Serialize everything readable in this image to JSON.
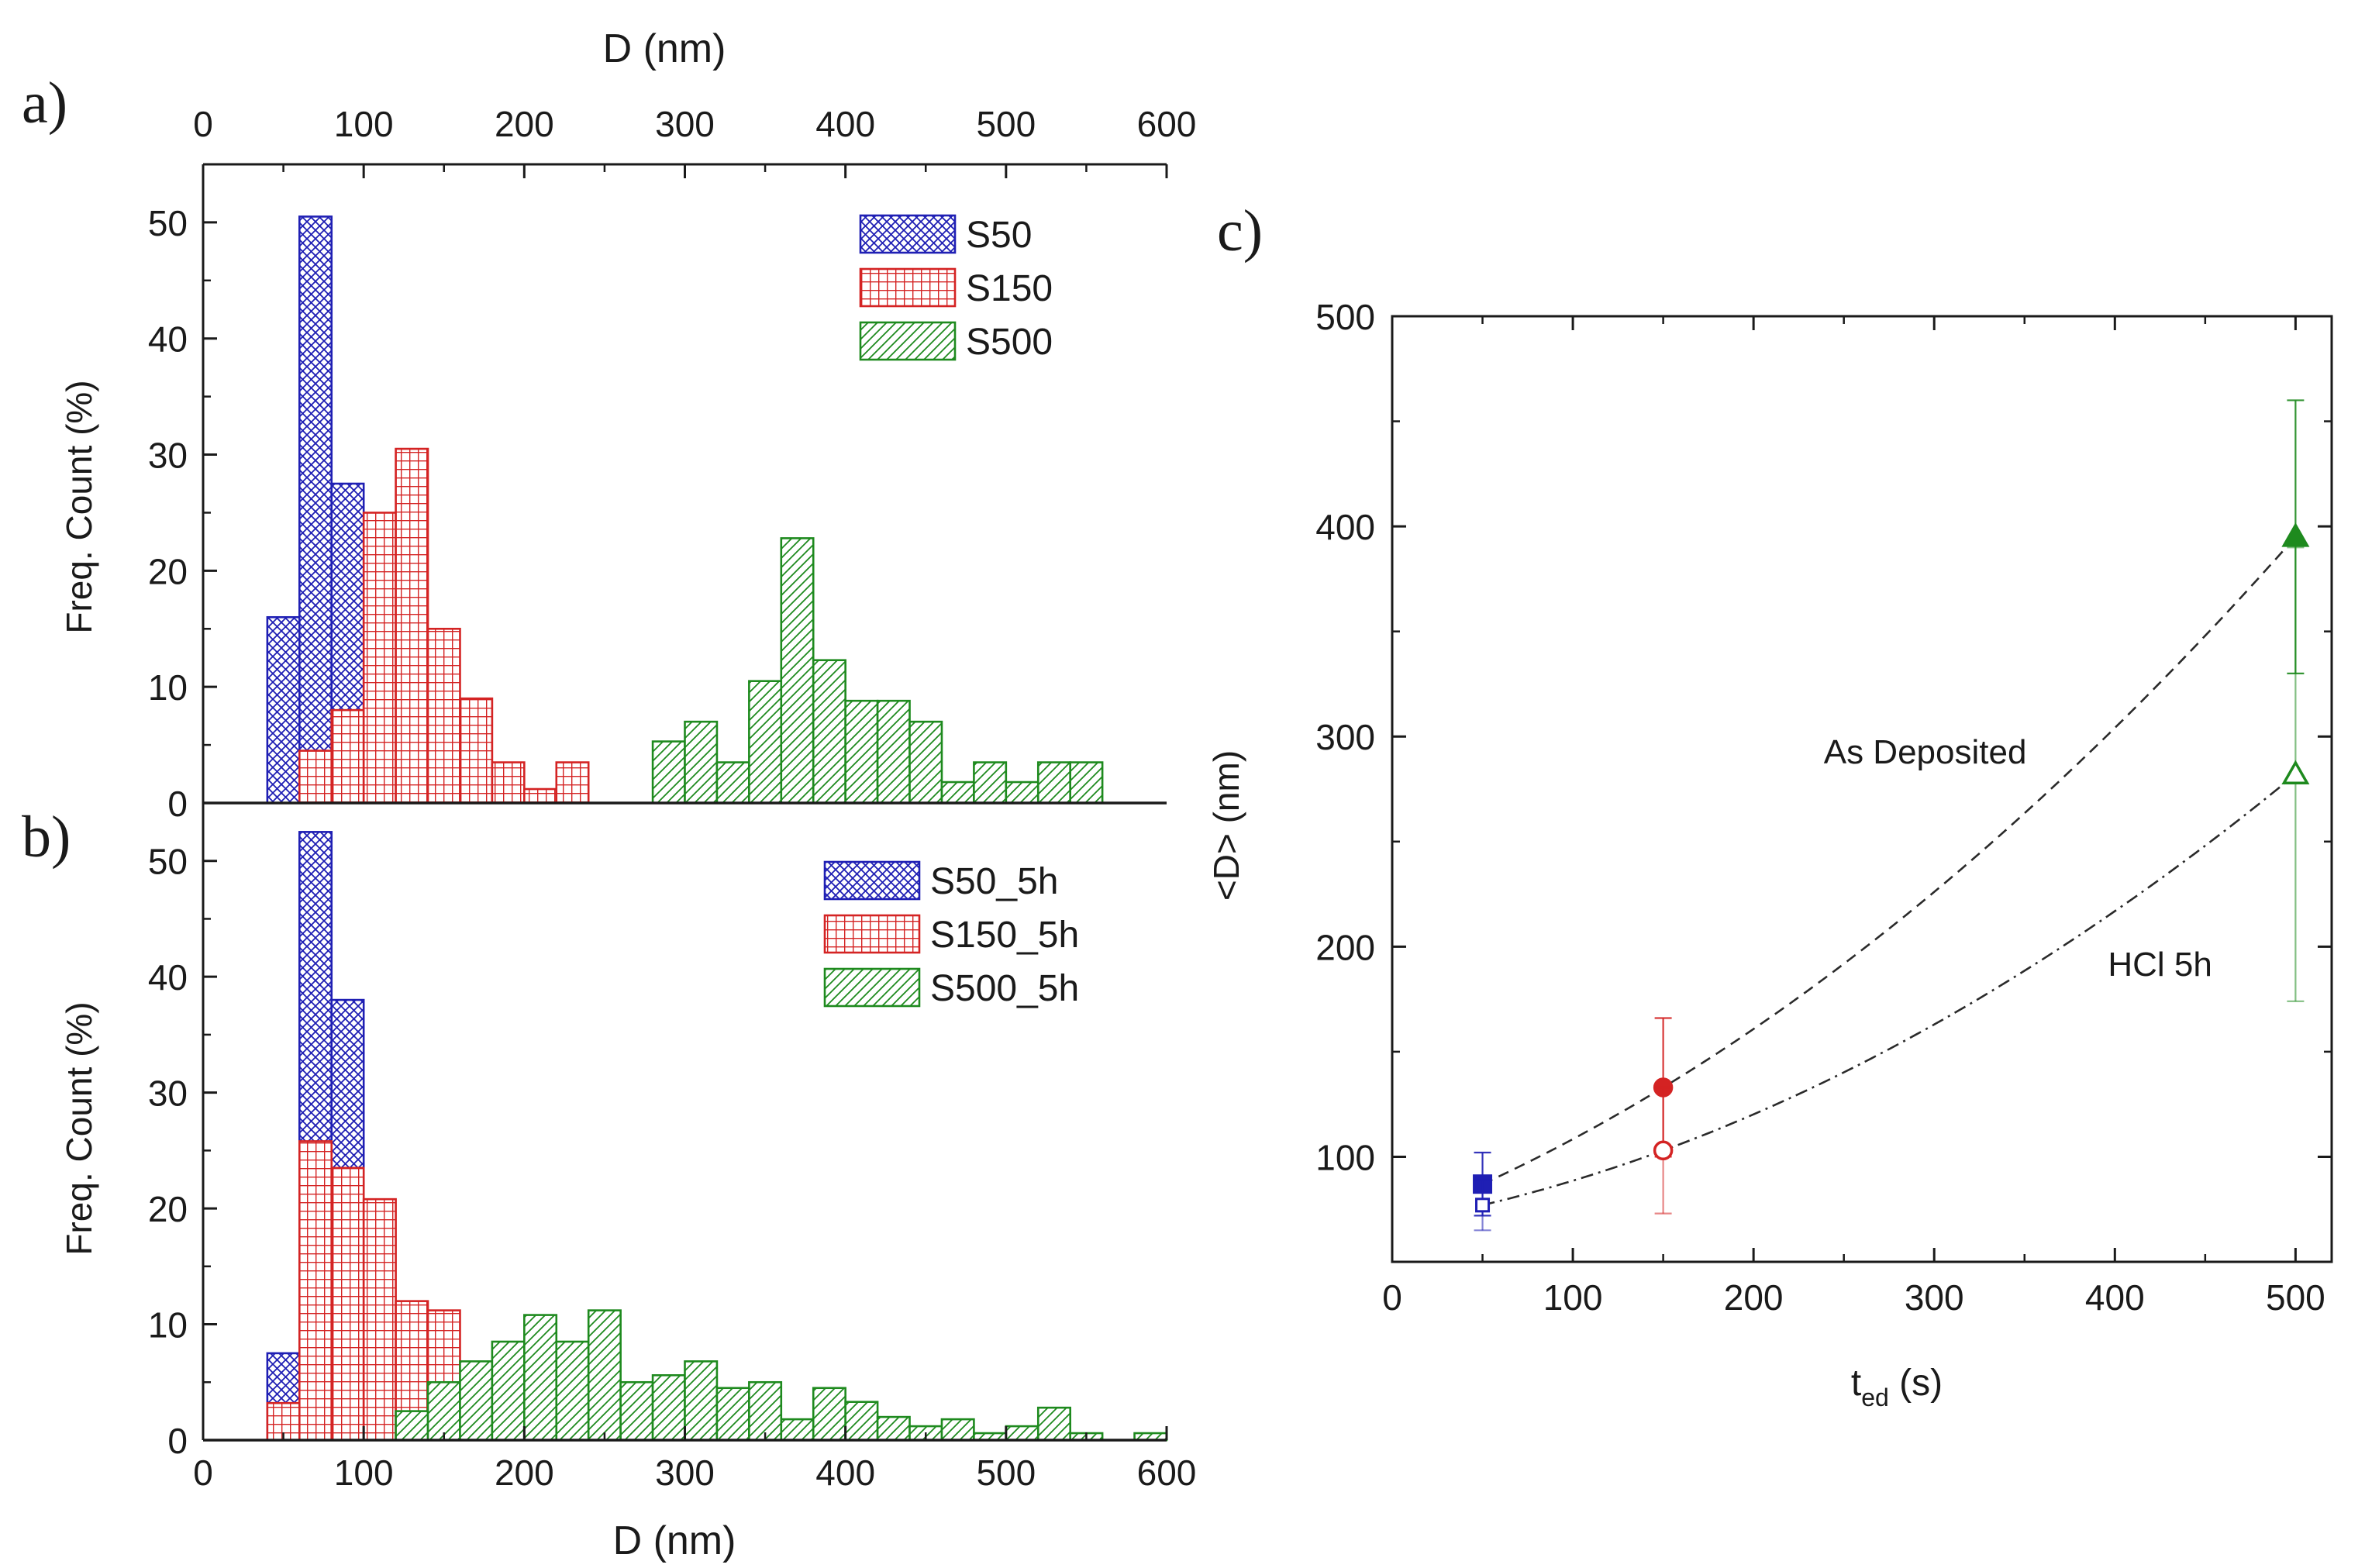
{
  "colors": {
    "s50": "#1f1fb4",
    "s150": "#d42323",
    "s500": "#1e8a1e",
    "axis": "#1a1a1a"
  },
  "chart_data": [
    {
      "id": "a",
      "type": "bar",
      "panel_label": "a)",
      "top_axis_title": "D (nm)",
      "ylabel": "Freq. Count (%)",
      "xlim": [
        0,
        600
      ],
      "ylim": [
        0,
        55
      ],
      "xticks": [
        0,
        100,
        200,
        300,
        400,
        500,
        600
      ],
      "yticks": [
        0,
        10,
        20,
        30,
        40,
        50
      ],
      "bin_width": 20,
      "legend": [
        "S50",
        "S150",
        "S500"
      ],
      "series": [
        {
          "name": "S50",
          "key": "s50",
          "pattern": "crosshatch",
          "centers": [
            50,
            70,
            90,
            110
          ],
          "values": [
            16,
            50.5,
            27.5,
            5.5
          ]
        },
        {
          "name": "S150",
          "key": "s150",
          "pattern": "grid",
          "centers": [
            70,
            90,
            110,
            130,
            150,
            170,
            190,
            210,
            230
          ],
          "values": [
            4.5,
            8,
            25,
            30.5,
            15,
            9,
            3.5,
            1.2,
            3.5
          ]
        },
        {
          "name": "S500",
          "key": "s500",
          "pattern": "diag",
          "centers": [
            290,
            310,
            330,
            350,
            370,
            390,
            410,
            430,
            450,
            470,
            490,
            510,
            530,
            550
          ],
          "values": [
            5.3,
            7,
            3.5,
            10.5,
            22.8,
            12.3,
            8.8,
            8.8,
            7,
            1.8,
            3.5,
            1.8,
            3.5,
            3.5
          ]
        }
      ]
    },
    {
      "id": "b",
      "type": "bar",
      "panel_label": "b)",
      "xlabel": "D (nm)",
      "ylabel": "Freq. Count (%)",
      "xlim": [
        0,
        600
      ],
      "ylim": [
        0,
        55
      ],
      "xticks": [
        0,
        100,
        200,
        300,
        400,
        500,
        600
      ],
      "yticks": [
        0,
        10,
        20,
        30,
        40,
        50
      ],
      "bin_width": 20,
      "legend": [
        "S50_5h",
        "S150_5h",
        "S500_5h"
      ],
      "series": [
        {
          "name": "S50_5h",
          "key": "s50",
          "pattern": "crosshatch",
          "centers": [
            50,
            70,
            90,
            110,
            130
          ],
          "values": [
            7.5,
            52.5,
            38,
            1,
            1.5
          ]
        },
        {
          "name": "S150_5h",
          "key": "s150",
          "pattern": "grid",
          "centers": [
            50,
            70,
            90,
            110,
            130,
            150,
            170,
            190,
            210
          ],
          "values": [
            3.2,
            25.8,
            23.5,
            20.8,
            12,
            11.2,
            2,
            1.2,
            0.4
          ]
        },
        {
          "name": "S500_5h",
          "key": "s500",
          "pattern": "diag",
          "centers": [
            130,
            150,
            170,
            190,
            210,
            230,
            250,
            270,
            290,
            310,
            330,
            350,
            370,
            390,
            410,
            430,
            450,
            470,
            490,
            510,
            530,
            550,
            590
          ],
          "values": [
            2.5,
            5,
            6.8,
            8.5,
            10.8,
            8.5,
            11.2,
            5,
            5.6,
            6.8,
            4.5,
            5,
            1.8,
            4.5,
            3.3,
            2,
            1.2,
            1.8,
            0.6,
            1.2,
            2.8,
            0.6,
            0.6
          ]
        }
      ]
    },
    {
      "id": "c",
      "type": "scatter",
      "panel_label": "c)",
      "xlabel_main": "t",
      "xlabel_sub": "ed",
      "xlabel_unit": " (s)",
      "ylabel": "<D> (nm)",
      "xlim": [
        0,
        520
      ],
      "ylim": [
        50,
        500
      ],
      "xticks": [
        0,
        100,
        200,
        300,
        400,
        500
      ],
      "yticks": [
        100,
        200,
        300,
        400,
        500
      ],
      "series": [
        {
          "name": "As Deposited",
          "line": "dashed",
          "points": [
            {
              "x": 50,
              "y": 87,
              "err": 15,
              "key": "s50",
              "marker": "square",
              "filled": true
            },
            {
              "x": 150,
              "y": 133,
              "err": 33,
              "key": "s150",
              "marker": "circle",
              "filled": true
            },
            {
              "x": 500,
              "y": 395,
              "err": 65,
              "key": "s500",
              "marker": "triangle",
              "filled": true
            }
          ]
        },
        {
          "name": "HCl 5h",
          "line": "dashdot",
          "points": [
            {
              "x": 50,
              "y": 77,
              "err": 12,
              "key": "s50",
              "marker": "square",
              "filled": false
            },
            {
              "x": 150,
              "y": 103,
              "err": 30,
              "key": "s150",
              "marker": "circle",
              "filled": false
            },
            {
              "x": 500,
              "y": 282,
              "err": 108,
              "key": "s500",
              "marker": "triangle",
              "filled": false
            }
          ]
        }
      ],
      "annotations": [
        {
          "text": "As Deposited",
          "x": 295,
          "y": 293
        },
        {
          "text": "HCl 5h",
          "x": 425,
          "y": 192
        }
      ]
    }
  ]
}
